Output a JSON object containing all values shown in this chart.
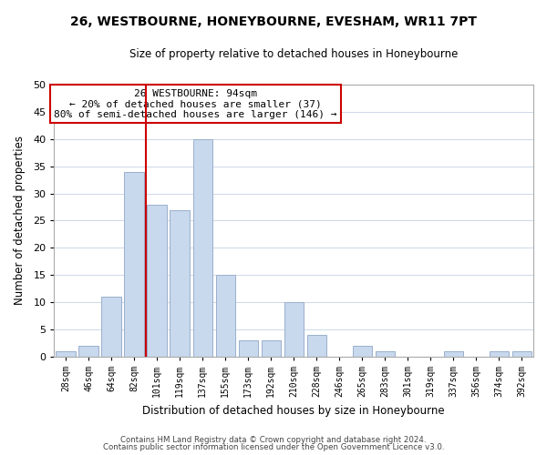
{
  "title": "26, WESTBOURNE, HONEYBOURNE, EVESHAM, WR11 7PT",
  "subtitle": "Size of property relative to detached houses in Honeybourne",
  "xlabel": "Distribution of detached houses by size in Honeybourne",
  "ylabel": "Number of detached properties",
  "bar_color": "#c8d8ed",
  "bar_edge_color": "#9ab0cc",
  "categories": [
    "28sqm",
    "46sqm",
    "64sqm",
    "82sqm",
    "101sqm",
    "119sqm",
    "137sqm",
    "155sqm",
    "173sqm",
    "192sqm",
    "210sqm",
    "228sqm",
    "246sqm",
    "265sqm",
    "283sqm",
    "301sqm",
    "319sqm",
    "337sqm",
    "356sqm",
    "374sqm",
    "392sqm"
  ],
  "values": [
    1,
    2,
    11,
    34,
    28,
    27,
    40,
    15,
    3,
    3,
    10,
    4,
    0,
    2,
    1,
    0,
    0,
    1,
    0,
    1,
    1
  ],
  "ylim": [
    0,
    50
  ],
  "yticks": [
    0,
    5,
    10,
    15,
    20,
    25,
    30,
    35,
    40,
    45,
    50
  ],
  "vline_x_index": 4,
  "vline_color": "#cc0000",
  "annotation_title": "26 WESTBOURNE: 94sqm",
  "annotation_line1": "← 20% of detached houses are smaller (37)",
  "annotation_line2": "80% of semi-detached houses are larger (146) →",
  "annotation_box_color": "#ffffff",
  "annotation_box_edge": "#cc0000",
  "footer1": "Contains HM Land Registry data © Crown copyright and database right 2024.",
  "footer2": "Contains public sector information licensed under the Open Government Licence v3.0.",
  "background_color": "#ffffff",
  "grid_color": "#ccd8e8"
}
